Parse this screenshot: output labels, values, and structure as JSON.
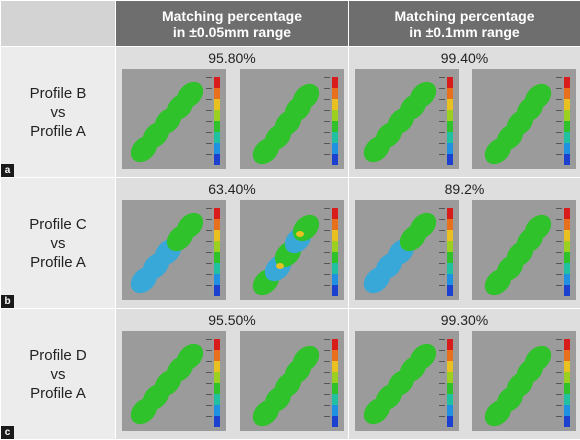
{
  "header": {
    "col1": [
      "Matching percentage",
      "in ±0.05mm range"
    ],
    "col2": [
      "Matching percentage",
      "in ±0.1mm range"
    ]
  },
  "rows": [
    {
      "label": [
        "Profile B",
        "vs",
        "Profile A"
      ],
      "tag": "a",
      "pct_005": "95.80%",
      "pct_01": "99.40%"
    },
    {
      "label": [
        "Profile C",
        "vs",
        "Profile A"
      ],
      "tag": "b",
      "pct_005": "63.40%",
      "pct_01": "89.2%"
    },
    {
      "label": [
        "Profile D",
        "vs",
        "Profile A"
      ],
      "tag": "c",
      "pct_005": "95.50%",
      "pct_01": "99.30%"
    }
  ],
  "colors": {
    "header_bg": "#6e6e6e",
    "scan_bg": "#9b9b9b",
    "model_green": "#2fc22a",
    "deviation_blue": "#38a8d8"
  },
  "icons": [
    "color-scale-bar",
    "tooth-model-render"
  ]
}
